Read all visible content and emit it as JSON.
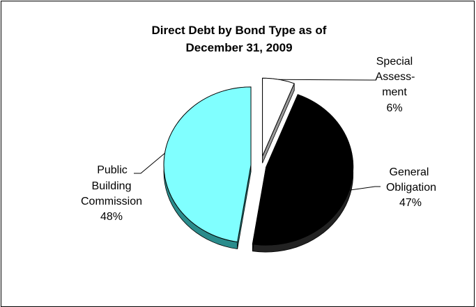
{
  "chart_data": {
    "type": "pie",
    "title": "Direct Debt by Bond Type as of December 31, 2009",
    "title_lines": [
      "Direct Debt by Bond Type as of",
      "December 31, 2009"
    ],
    "slices": [
      {
        "category": "Special Assessment",
        "label_lines": [
          "Special",
          "Assess-",
          "ment"
        ],
        "percent_label": "6%",
        "value": 6,
        "color": "#ffffff",
        "side_color": "#9a9a9a"
      },
      {
        "category": "General Obligation",
        "label_lines": [
          "General",
          "Obligation"
        ],
        "percent_label": "47%",
        "value": 47,
        "color": "#000000",
        "side_color": "#222222"
      },
      {
        "category": "Public Building Commission",
        "label_lines": [
          "Public",
          "Building",
          "Commission"
        ],
        "percent_label": "48%",
        "value": 48,
        "color": "#80ffff",
        "side_color": "#2a8c8c"
      }
    ],
    "exploded": true,
    "three_d": true,
    "legend": "none"
  }
}
